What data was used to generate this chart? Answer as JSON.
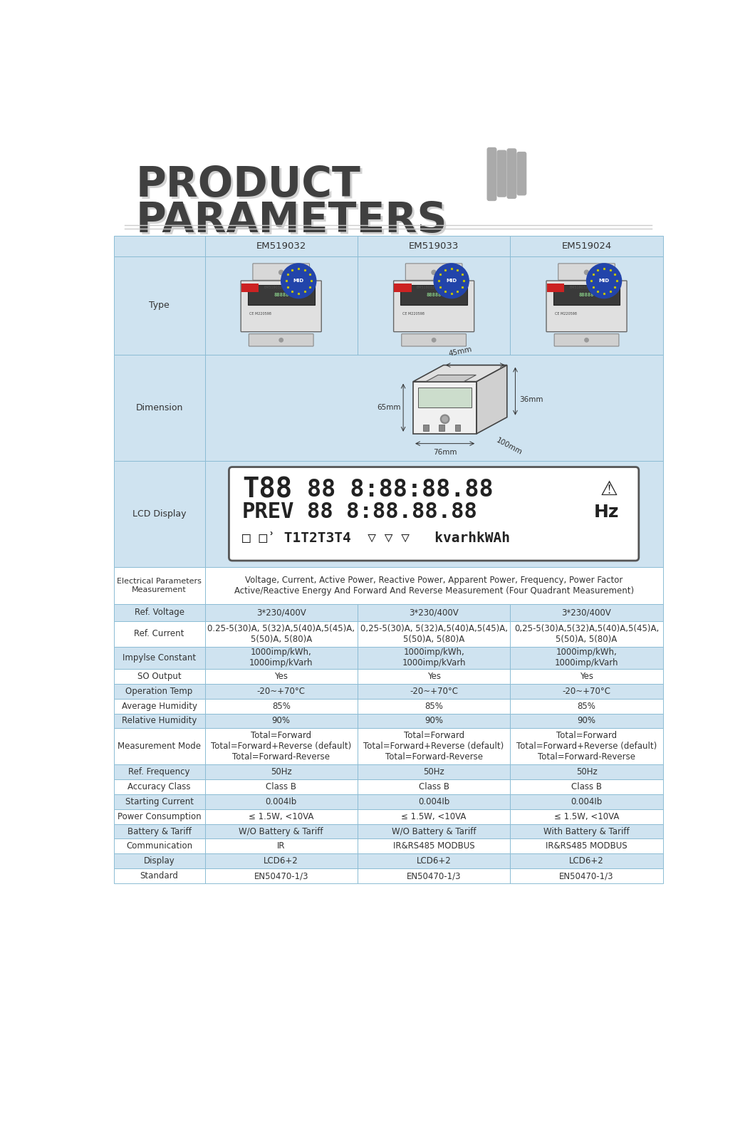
{
  "title_line1": "PRODUCT",
  "title_line2": "PARAMETERS",
  "title_color": "#404040",
  "title_fontsize": 42,
  "bg_color": "#ffffff",
  "table_header_bg": "#cfe3f0",
  "table_row_bg_blue": "#cfe3f0",
  "table_row_bg_white": "#ffffff",
  "table_border_color": "#8bbcd4",
  "col_headers": [
    "EM519032",
    "EM519033",
    "EM519024"
  ],
  "data": {
    "Ref. Voltage": [
      "3*230/400V",
      "3*230/400V",
      "3*230/400V"
    ],
    "Ref. Current": [
      "0.25-5(30)A, 5(32)A,5(40)A,5(45)A,\n5(50)A, 5(80)A",
      "0,25-5(30)A, 5(32)A,5(40)A,5(45)A,\n5(50)A, 5(80)A",
      "0,25-5(30)A,5(32)A,5(40)A,5(45)A,\n5(50)A, 5(80)A"
    ],
    "Impylse Constant": [
      "1000imp/kWh,\n1000imp/kVarh",
      "1000imp/kWh,\n1000imp/kVarh",
      "1000imp/kWh,\n1000imp/kVarh"
    ],
    "SO Output": [
      "Yes",
      "Yes",
      "Yes"
    ],
    "Operation Temp": [
      "-20~+70°C",
      "-20~+70°C",
      "-20~+70°C"
    ],
    "Average Humidity": [
      "85%",
      "85%",
      "85%"
    ],
    "Relative Humidity": [
      "90%",
      "90%",
      "90%"
    ],
    "Measurement Mode": [
      "Total=Forward\nTotal=Forward+Reverse (default)\nTotal=Forward-Reverse",
      "Total=Forward\nTotal=Forward+Reverse (default)\nTotal=Forward-Reverse",
      "Total=Forward\nTotal=Forward+Reverse (default)\nTotal=Forward-Reverse"
    ],
    "Ref. Frequency": [
      "50Hz",
      "50Hz",
      "50Hz"
    ],
    "Accuracy Class": [
      "Class B",
      "Class B",
      "Class B"
    ],
    "Starting Current": [
      "0.004Ib",
      "0.004Ib",
      "0.004Ib"
    ],
    "Power Consumption": [
      "≤ 1.5W, <10VA",
      "≤ 1.5W, <10VA",
      "≤ 1.5W, <10VA"
    ],
    "Battery & Tariff": [
      "W/O Battery & Tariff",
      "W/O Battery & Tariff",
      "With Battery & Tariff"
    ],
    "Communication": [
      "IR",
      "IR&RS485 MODBUS",
      "IR&RS485 MODBUS"
    ],
    "Display": [
      "LCD6+2",
      "LCD6+2",
      "LCD6+2"
    ],
    "Standard": [
      "EN50470-1/3",
      "EN50470-1/3",
      "EN50470-1/3"
    ]
  }
}
